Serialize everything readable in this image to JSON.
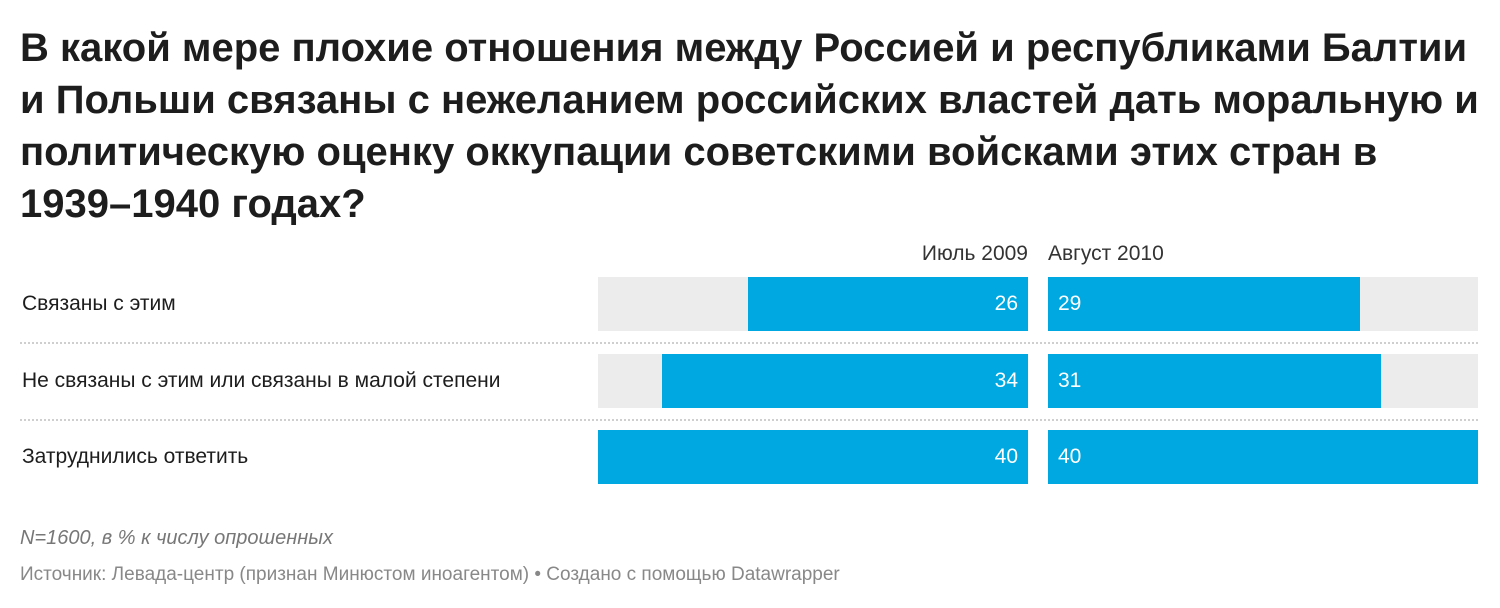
{
  "chart_data": {
    "type": "bar",
    "title": "В какой мере плохие отношения между Россией и республиками Балтии и Польши связаны с нежеланием российских властей дать моральную и политическую оценку оккупации советскими войсками этих стран в 1939–1940 годах?",
    "categories": [
      "Связаны с этим",
      "Не связаны с этим или связаны в малой степени",
      "Затруднились ответить"
    ],
    "series": [
      {
        "name": "Июль 2009",
        "values": [
          26,
          34,
          40
        ]
      },
      {
        "name": "Август 2010",
        "values": [
          29,
          31,
          40
        ]
      }
    ],
    "xlim": [
      0,
      40
    ],
    "grid": false,
    "bar_color": "#00a8e1",
    "track_color": "#ececec",
    "notes": "N=1600, в % к числу опрошенных",
    "source": "Источник: Левада-центр (признан Минюстом иноагентом) • Создано с помощью Datawrapper"
  }
}
